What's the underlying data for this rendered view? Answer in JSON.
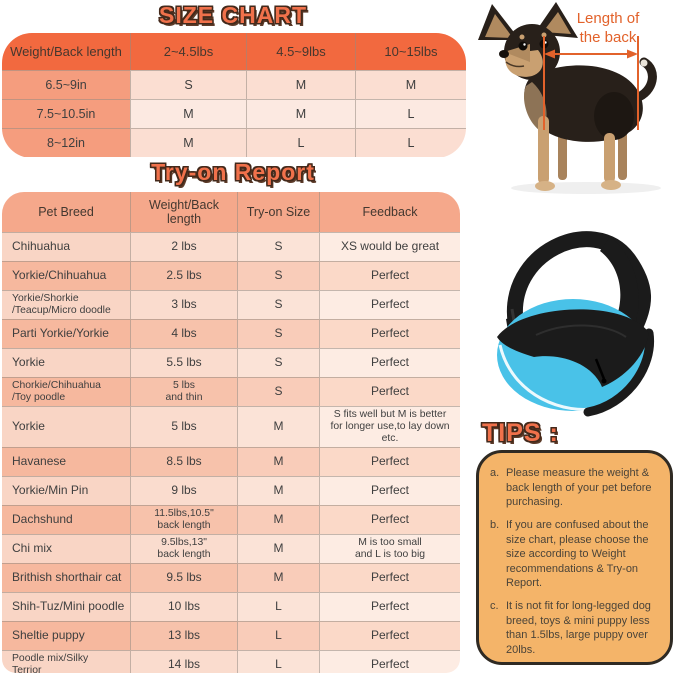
{
  "size_chart": {
    "title": "SIZE CHART",
    "header": [
      "Weight/Back length",
      "2~4.5lbs",
      "4.5~9lbs",
      "10~15lbs"
    ],
    "rows": [
      [
        "6.5~9in",
        "S",
        "M",
        "M"
      ],
      [
        "7.5~10.5in",
        "M",
        "M",
        "L"
      ],
      [
        "8~12in",
        "M",
        "L",
        "L"
      ]
    ]
  },
  "tryon": {
    "title": "Try-on Report",
    "header": [
      "Pet Breed",
      "Weight/Back length",
      "Try-on Size",
      "Feedback"
    ],
    "rows": [
      [
        "Chihuahua",
        "2 lbs",
        "S",
        "XS would be great"
      ],
      [
        "Yorkie/Chihuahua",
        "2.5 lbs",
        "S",
        "Perfect"
      ],
      [
        "Yorkie/Shorkie\n/Teacup/Micro doodle",
        "3 lbs",
        "S",
        "Perfect"
      ],
      [
        "Parti Yorkie/Yorkie",
        "4 lbs",
        "S",
        "Perfect"
      ],
      [
        "Yorkie",
        "5.5 lbs",
        "S",
        "Perfect"
      ],
      [
        "Chorkie/Chihuahua\n/Toy poodle",
        "5 lbs\nand thin",
        "S",
        "Perfect"
      ],
      [
        "Yorkie",
        "5 lbs",
        "M",
        "S fits well but M is better\nfor longer use,to lay down etc."
      ],
      [
        "Havanese",
        "8.5 lbs",
        "M",
        "Perfect"
      ],
      [
        "Yorkie/Min Pin",
        "9 lbs",
        "M",
        "Perfect"
      ],
      [
        "Dachshund",
        "11.5lbs,10.5\"\nback length",
        "M",
        "Perfect"
      ],
      [
        "Chi mix",
        "9.5lbs,13\"\nback length",
        "M",
        "M is too small\nand L is too big"
      ],
      [
        "Brithish shorthair cat",
        "9.5 lbs",
        "M",
        "Perfect"
      ],
      [
        "Shih-Tuz/Mini poodle",
        "10 lbs",
        "L",
        "Perfect"
      ],
      [
        "Sheltie puppy",
        "13 lbs",
        "L",
        "Perfect"
      ],
      [
        "Poodle mix/Silky\n Terrior",
        "14 lbs",
        "L",
        "Perfect"
      ]
    ]
  },
  "dog_figure": {
    "label": "Length of\nthe back"
  },
  "tips": {
    "title": "TIPS :",
    "items": [
      {
        "letter": "a.",
        "text": "Please measure the weight & back length of your pet before purchasing."
      },
      {
        "letter": "b.",
        "text": "If you are confused about the size chart, please choose the size according to Weight recommendations & Try-on Report."
      },
      {
        "letter": "c.",
        "text": "It is not fit for long-legged dog breed, toys & mini puppy less than 1.5lbs, large puppy over 20lbs."
      }
    ]
  },
  "colors": {
    "header_orange": "#f2693f",
    "salmon_column": "#f59d7e",
    "tryon_header": "#f5a88b",
    "title_fill": "#f0714b",
    "title_outline": "#43291b",
    "tips_background": "#f4b469",
    "tips_border": "#2f2a23",
    "bag_blue": "#49c2e8",
    "measure_line_orange": "#e2622b"
  }
}
